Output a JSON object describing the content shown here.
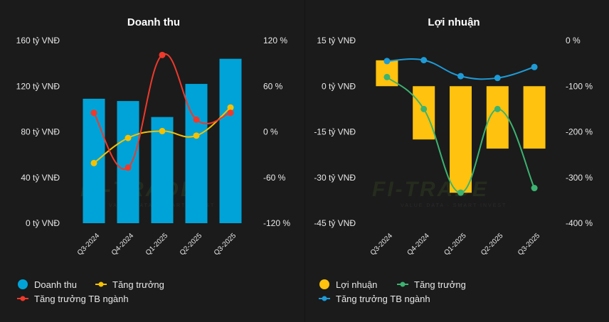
{
  "charts": [
    {
      "id": "left",
      "title": "Doanh thu",
      "type": "bar+line",
      "categories": [
        "Q3-2024",
        "Q4-2024",
        "Q1-2025",
        "Q2-2025",
        "Q3-2025"
      ],
      "left_axis": {
        "ticks": [
          0,
          40,
          80,
          120,
          160
        ],
        "tick_labels": [
          "0 tỷ VNĐ",
          "40 tỷ VNĐ",
          "80 tỷ VNĐ",
          "120 tỷ VNĐ",
          "160 tỷ VNĐ"
        ],
        "ylim": [
          0,
          160
        ]
      },
      "right_axis": {
        "ticks": [
          -120,
          -60,
          0,
          60,
          120
        ],
        "tick_labels": [
          "-120 %",
          "-60 %",
          "0 %",
          "60 %",
          "120 %"
        ],
        "ylim": [
          -120,
          120
        ]
      },
      "series": [
        {
          "name": "Doanh thu",
          "kind": "bar",
          "axis": "left",
          "color": "#00a3d7",
          "values": [
            109,
            107,
            93,
            122,
            144
          ]
        },
        {
          "name": "Tăng trưởng",
          "kind": "line",
          "axis": "right",
          "color": "#f5c100",
          "values": [
            -41,
            -8,
            1,
            -5,
            32
          ]
        },
        {
          "name": "Tăng trưởng TB ngành",
          "kind": "line",
          "axis": "right",
          "color": "#f0392b",
          "values": [
            25,
            -47,
            101,
            16,
            25
          ]
        }
      ],
      "legend": [
        {
          "label": "Doanh thu",
          "marker": "circle",
          "color": "#00a3d7"
        },
        {
          "label": "Tăng trưởng",
          "marker": "line-dot",
          "color": "#f5c100"
        },
        {
          "label": "Tăng trưởng TB ngành",
          "marker": "line-dot",
          "color": "#f0392b"
        }
      ]
    },
    {
      "id": "right",
      "title": "Lợi nhuận",
      "type": "bar+line",
      "categories": [
        "Q3-2024",
        "Q4-2024",
        "Q1-2025",
        "Q2-2025",
        "Q3-2025"
      ],
      "left_axis": {
        "ticks": [
          -45,
          -30,
          -15,
          0,
          15
        ],
        "tick_labels": [
          "-45 tỷ VNĐ",
          "-30 tỷ VNĐ",
          "-15 tỷ VNĐ",
          "0 tỷ VNĐ",
          "15 tỷ VNĐ"
        ],
        "ylim": [
          -45,
          15
        ]
      },
      "right_axis": {
        "ticks": [
          -400,
          -300,
          -200,
          -100,
          0
        ],
        "tick_labels": [
          "-400 %",
          "-300 %",
          "-200 %",
          "-100 %",
          "0 %"
        ],
        "ylim": [
          -400,
          0
        ]
      },
      "series": [
        {
          "name": "Lợi nhuận",
          "kind": "bar",
          "axis": "left",
          "color": "#ffc20e",
          "values": [
            8.5,
            -17.5,
            -35,
            -20.5,
            -20.5
          ]
        },
        {
          "name": "Tăng trưởng",
          "kind": "line",
          "axis": "right",
          "color": "#3cb371",
          "values": [
            -80,
            -150,
            -333,
            -150,
            -323
          ]
        },
        {
          "name": "Tăng trưởng TB ngành",
          "kind": "line",
          "axis": "right",
          "color": "#1e9bd7",
          "values": [
            -45,
            -43,
            -78,
            -82,
            -58
          ]
        }
      ],
      "legend": [
        {
          "label": "Lợi nhuận",
          "marker": "circle",
          "color": "#ffc20e"
        },
        {
          "label": "Tăng trưởng",
          "marker": "line-dot",
          "color": "#3cb371"
        },
        {
          "label": "Tăng trưởng TB ngành",
          "marker": "line-dot",
          "color": "#1e9bd7"
        }
      ]
    }
  ],
  "watermark": {
    "text": "FI-TRADE",
    "tagline": "VALUE DATA · SMART INVEST"
  }
}
